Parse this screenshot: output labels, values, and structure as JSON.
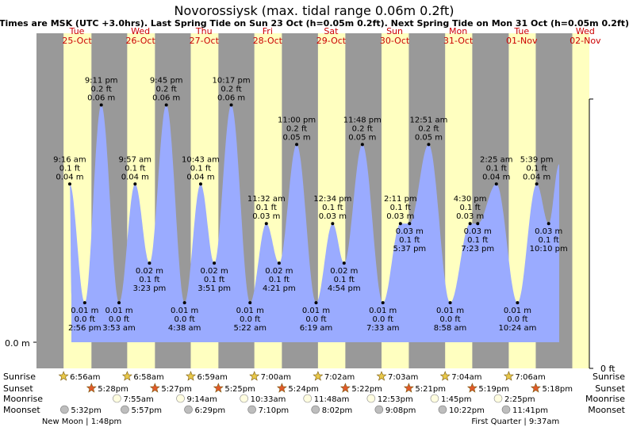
{
  "chart_data": {
    "type": "area",
    "title": "Novorossiysk (max. tidal range 0.06m 0.2ft)",
    "subtitle": "Times are MSK (UTC +3.0hrs). Last Spring Tide on Sun 23 Oct (h=0.05m 0.2ft). Next Spring Tide on Mon 31 Oct (h=0.05m 0.2ft)",
    "y_axis_left_label": "0.0 m",
    "y_axis_right_label": "0 ft",
    "colors": {
      "night": "#999999",
      "day": "#ffffc0",
      "water": "#9aabff",
      "header_day": "#cc0000",
      "sun_icon": "#e8c84a",
      "sunset_icon": "#e05a2a",
      "moon_icon": "#bdbdbd"
    },
    "days": [
      {
        "dow": "Tue",
        "date": "25-Oct",
        "sunrise": "6:56am",
        "sunset": "5:28pm",
        "moonrise": "",
        "moonset": "5:32pm",
        "sunrise_h": 6.93,
        "sunset_h": 17.47
      },
      {
        "dow": "Wed",
        "date": "26-Oct",
        "sunrise": "6:58am",
        "sunset": "5:27pm",
        "moonrise": "7:55am",
        "moonset": "5:57pm",
        "sunrise_h": 6.97,
        "sunset_h": 17.45
      },
      {
        "dow": "Thu",
        "date": "27-Oct",
        "sunrise": "6:59am",
        "sunset": "5:25pm",
        "moonrise": "9:14am",
        "moonset": "6:29pm",
        "sunrise_h": 6.98,
        "sunset_h": 17.42
      },
      {
        "dow": "Fri",
        "date": "28-Oct",
        "sunrise": "7:00am",
        "sunset": "5:24pm",
        "moonrise": "10:33am",
        "moonset": "7:10pm",
        "sunrise_h": 7.0,
        "sunset_h": 17.4
      },
      {
        "dow": "Sat",
        "date": "29-Oct",
        "sunrise": "7:02am",
        "sunset": "5:22pm",
        "moonrise": "11:48am",
        "moonset": "8:02pm",
        "sunrise_h": 7.03,
        "sunset_h": 17.37
      },
      {
        "dow": "Sun",
        "date": "30-Oct",
        "sunrise": "7:03am",
        "sunset": "5:21pm",
        "moonrise": "12:53pm",
        "moonset": "9:08pm",
        "sunrise_h": 7.05,
        "sunset_h": 17.35
      },
      {
        "dow": "Mon",
        "date": "31-Oct",
        "sunrise": "7:04am",
        "sunset": "5:19pm",
        "moonrise": "1:45pm",
        "moonset": "10:22pm",
        "sunrise_h": 7.07,
        "sunset_h": 17.32
      },
      {
        "dow": "Tue",
        "date": "01-Nov",
        "sunrise": "7:06am",
        "sunset": "5:18pm",
        "moonrise": "2:25pm",
        "moonset": "11:41pm",
        "sunrise_h": 7.1,
        "sunset_h": 17.3
      },
      {
        "dow": "Wed",
        "date": "02-Nov",
        "sunrise": "",
        "sunset": "",
        "moonrise": "",
        "moonset": "",
        "sunrise_h": null,
        "sunset_h": null
      }
    ],
    "row_labels": [
      "Sunrise",
      "Sunset",
      "Moonrise",
      "Moonset"
    ],
    "moon_phases": [
      {
        "text": "New Moon | 1:48pm",
        "day": 0,
        "hour": 13.8
      },
      {
        "text": "First Quarter | 9:37am",
        "day": 7,
        "hour": 9.62
      }
    ],
    "tides": [
      {
        "day": 0,
        "time": "2:56 pm",
        "t": 14.93,
        "m": "0.01 m",
        "ft": "0.0 ft",
        "type": "low",
        "h": 0.01
      },
      {
        "day": 0,
        "time": "9:16 am",
        "t": 9.27,
        "m": "0.04 m",
        "ft": "0.1 ft",
        "type": "high",
        "h": 0.04
      },
      {
        "day": 0,
        "time": "9:11 pm",
        "t": 21.18,
        "m": "0.06 m",
        "ft": "0.2 ft",
        "type": "high",
        "h": 0.06
      },
      {
        "day": 1,
        "time": "3:53 am",
        "t": 3.88,
        "m": "0.01 m",
        "ft": "0.0 ft",
        "type": "low",
        "h": 0.01
      },
      {
        "day": 1,
        "time": "9:57 am",
        "t": 9.95,
        "m": "0.04 m",
        "ft": "0.1 ft",
        "type": "high",
        "h": 0.04
      },
      {
        "day": 1,
        "time": "3:23 pm",
        "t": 15.38,
        "m": "0.02 m",
        "ft": "0.1 ft",
        "type": "low",
        "h": 0.02
      },
      {
        "day": 1,
        "time": "9:45 pm",
        "t": 21.75,
        "m": "0.06 m",
        "ft": "0.2 ft",
        "type": "high",
        "h": 0.06
      },
      {
        "day": 2,
        "time": "4:38 am",
        "t": 4.63,
        "m": "0.01 m",
        "ft": "0.0 ft",
        "type": "low",
        "h": 0.01
      },
      {
        "day": 2,
        "time": "10:43 am",
        "t": 10.72,
        "m": "0.04 m",
        "ft": "0.1 ft",
        "type": "high",
        "h": 0.04
      },
      {
        "day": 2,
        "time": "3:51 pm",
        "t": 15.85,
        "m": "0.02 m",
        "ft": "0.1 ft",
        "type": "low",
        "h": 0.02
      },
      {
        "day": 2,
        "time": "10:17 pm",
        "t": 22.28,
        "m": "0.06 m",
        "ft": "0.2 ft",
        "type": "high",
        "h": 0.06
      },
      {
        "day": 3,
        "time": "5:22 am",
        "t": 5.37,
        "m": "0.01 m",
        "ft": "0.0 ft",
        "type": "low",
        "h": 0.01
      },
      {
        "day": 3,
        "time": "11:32 am",
        "t": 11.53,
        "m": "0.03 m",
        "ft": "0.1 ft",
        "type": "high",
        "h": 0.03
      },
      {
        "day": 3,
        "time": "4:21 pm",
        "t": 16.35,
        "m": "0.02 m",
        "ft": "0.1 ft",
        "type": "low",
        "h": 0.02
      },
      {
        "day": 3,
        "time": "11:00 pm",
        "t": 23.0,
        "m": "0.05 m",
        "ft": "0.2 ft",
        "type": "high",
        "h": 0.05
      },
      {
        "day": 4,
        "time": "6:19 am",
        "t": 6.32,
        "m": "0.01 m",
        "ft": "0.0 ft",
        "type": "low",
        "h": 0.01
      },
      {
        "day": 4,
        "time": "12:34 pm",
        "t": 12.57,
        "m": "0.03 m",
        "ft": "0.1 ft",
        "type": "high",
        "h": 0.03
      },
      {
        "day": 4,
        "time": "4:54 pm",
        "t": 16.9,
        "m": "0.02 m",
        "ft": "0.1 ft",
        "type": "low",
        "h": 0.02
      },
      {
        "day": 4,
        "time": "11:48 pm",
        "t": 23.8,
        "m": "0.05 m",
        "ft": "0.2 ft",
        "type": "high",
        "h": 0.05
      },
      {
        "day": 5,
        "time": "7:33 am",
        "t": 7.55,
        "m": "0.01 m",
        "ft": "0.0 ft",
        "type": "low",
        "h": 0.01
      },
      {
        "day": 5,
        "time": "2:11 pm",
        "t": 14.18,
        "m": "0.03 m",
        "ft": "0.1 ft",
        "type": "high",
        "h": 0.03
      },
      {
        "day": 5,
        "time": "5:37 pm",
        "t": 17.62,
        "m": "0.03 m",
        "ft": "0.1 ft",
        "type": "low",
        "h": 0.03
      },
      {
        "day": 6,
        "time": "12:51 am",
        "t": 0.85,
        "m": "0.05 m",
        "ft": "0.2 ft",
        "type": "high",
        "h": 0.05
      },
      {
        "day": 6,
        "time": "8:58 am",
        "t": 8.97,
        "m": "0.01 m",
        "ft": "0.0 ft",
        "type": "low",
        "h": 0.01
      },
      {
        "day": 6,
        "time": "4:30 pm",
        "t": 16.5,
        "m": "0.03 m",
        "ft": "0.1 ft",
        "type": "high",
        "h": 0.03
      },
      {
        "day": 6,
        "time": "7:23 pm",
        "t": 19.38,
        "m": "0.03 m",
        "ft": "0.1 ft",
        "type": "low",
        "h": 0.03
      },
      {
        "day": 7,
        "time": "2:25 am",
        "t": 2.42,
        "m": "0.04 m",
        "ft": "0.1 ft",
        "type": "high",
        "h": 0.04
      },
      {
        "day": 7,
        "time": "10:24 am",
        "t": 10.4,
        "m": "0.01 m",
        "ft": "0.0 ft",
        "type": "low",
        "h": 0.01
      },
      {
        "day": 7,
        "time": "5:39 pm",
        "t": 17.65,
        "m": "0.04 m",
        "ft": "0.1 ft",
        "type": "high",
        "h": 0.04
      },
      {
        "day": 7,
        "time": "10:10 pm",
        "t": 22.17,
        "m": "0.03 m",
        "ft": "0.1 ft",
        "type": "low",
        "h": 0.03
      }
    ]
  }
}
